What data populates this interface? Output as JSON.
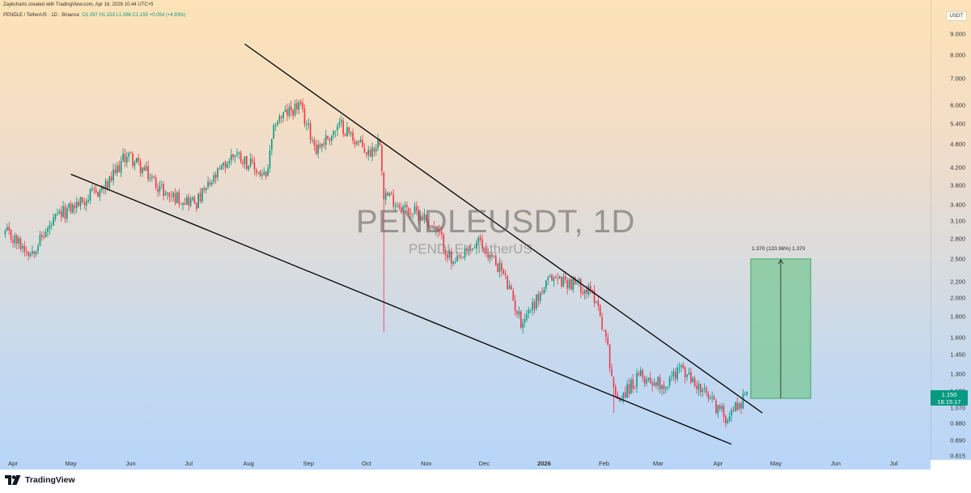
{
  "attribution": "Zaykcharts created with TradingView.com, Apr 16, 2026 10:44 UTC+5",
  "header": {
    "symbol": "PENDLE / TetherUS · 1D · Binance",
    "ohlc": "O1.097 H1.153 L1.086 C1.150 +0.054 (+4.93%)"
  },
  "unit_badge": "USDT",
  "watermark": {
    "title": "PENDLEUSDT, 1D",
    "subtitle": "PENDLE / TetherUS"
  },
  "last_price": {
    "price": "1.150",
    "countdown": "18:15:17"
  },
  "target_box": {
    "label": "1.370 (120.36%) 1.370"
  },
  "footer": {
    "brand": "TradingView"
  },
  "colors": {
    "up": "#089981",
    "down": "#f23645",
    "target_fill": "#7bc896",
    "trendline": "#000000"
  },
  "icons": {
    "logo": "tradingview-logo-icon"
  },
  "chart_data": {
    "type": "candlestick",
    "scale": "log",
    "y_ticks": [
      "9.000",
      "8.000",
      "7.000",
      "6.000",
      "5.400",
      "4.800",
      "4.200",
      "3.800",
      "3.400",
      "3.100",
      "2.800",
      "2.500",
      "2.200",
      "2.000",
      "1.800",
      "1.600",
      "1.450",
      "1.300",
      "1.180",
      "1.070",
      "0.980",
      "0.890",
      "0.815"
    ],
    "x_ticks": [
      {
        "label": "Apr",
        "date": "2025-04-01"
      },
      {
        "label": "May",
        "date": "2025-05-01"
      },
      {
        "label": "Jun",
        "date": "2025-06-01"
      },
      {
        "label": "Jul",
        "date": "2025-07-01"
      },
      {
        "label": "Aug",
        "date": "2025-08-01"
      },
      {
        "label": "Sep",
        "date": "2025-09-01"
      },
      {
        "label": "Oct",
        "date": "2025-10-01"
      },
      {
        "label": "Nov",
        "date": "2025-11-01"
      },
      {
        "label": "Dec",
        "date": "2025-12-01"
      },
      {
        "label": "2026",
        "date": "2026-01-01",
        "bold": true
      },
      {
        "label": "Feb",
        "date": "2026-02-01"
      },
      {
        "label": "Mar",
        "date": "2026-03-01"
      },
      {
        "label": "Apr",
        "date": "2026-04-01"
      },
      {
        "label": "May",
        "date": "2026-05-01"
      },
      {
        "label": "Jun",
        "date": "2026-06-01"
      },
      {
        "label": "Jul",
        "date": "2026-07-01"
      }
    ],
    "close_path": [
      {
        "date": "2025-03-28",
        "close": 2.9
      },
      {
        "date": "2025-04-10",
        "close": 2.6
      },
      {
        "date": "2025-04-25",
        "close": 3.2
      },
      {
        "date": "2025-05-20",
        "close": 3.8
      },
      {
        "date": "2025-05-30",
        "close": 4.55
      },
      {
        "date": "2025-06-20",
        "close": 3.6
      },
      {
        "date": "2025-07-05",
        "close": 3.45
      },
      {
        "date": "2025-07-25",
        "close": 4.6
      },
      {
        "date": "2025-08-10",
        "close": 3.95
      },
      {
        "date": "2025-08-15",
        "close": 5.5
      },
      {
        "date": "2025-08-27",
        "close": 6.0
      },
      {
        "date": "2025-09-05",
        "close": 4.7
      },
      {
        "date": "2025-09-18",
        "close": 5.35
      },
      {
        "date": "2025-10-02",
        "close": 4.55
      },
      {
        "date": "2025-10-08",
        "close": 4.95
      },
      {
        "date": "2025-10-10",
        "close": 3.65
      },
      {
        "date": "2025-10-20",
        "close": 3.35
      },
      {
        "date": "2025-10-30",
        "close": 3.2
      },
      {
        "date": "2025-11-08",
        "close": 2.85
      },
      {
        "date": "2025-11-15",
        "close": 2.4
      },
      {
        "date": "2025-11-28",
        "close": 2.75
      },
      {
        "date": "2025-12-10",
        "close": 2.35
      },
      {
        "date": "2025-12-20",
        "close": 1.75
      },
      {
        "date": "2026-01-05",
        "close": 2.25
      },
      {
        "date": "2026-01-20",
        "close": 2.15
      },
      {
        "date": "2026-01-28",
        "close": 2.0
      },
      {
        "date": "2026-02-03",
        "close": 1.5
      },
      {
        "date": "2026-02-07",
        "close": 1.12
      },
      {
        "date": "2026-02-20",
        "close": 1.28
      },
      {
        "date": "2026-03-05",
        "close": 1.22
      },
      {
        "date": "2026-03-12",
        "close": 1.35
      },
      {
        "date": "2026-03-28",
        "close": 1.12
      },
      {
        "date": "2026-04-05",
        "close": 1.02
      },
      {
        "date": "2026-04-16",
        "close": 1.15
      }
    ],
    "spike_lows": [
      {
        "date": "2025-10-10",
        "low": 1.65
      },
      {
        "date": "2026-02-06",
        "low": 1.04
      }
    ],
    "trendlines": [
      {
        "name": "upper",
        "from": {
          "date": "2025-07-30",
          "price": 8.5
        },
        "to": {
          "date": "2026-04-24",
          "price": 1.04
        }
      },
      {
        "name": "lower",
        "from": {
          "date": "2025-05-01",
          "price": 4.05
        },
        "to": {
          "date": "2026-04-08",
          "price": 0.87
        }
      }
    ],
    "target": {
      "from_date": "2026-04-18",
      "to_date": "2026-05-19",
      "low": 1.13,
      "high": 2.5
    }
  }
}
